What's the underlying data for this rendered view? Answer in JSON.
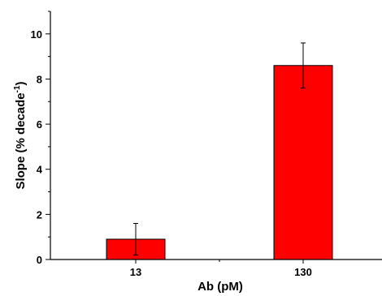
{
  "chart_data": {
    "type": "bar",
    "categories": [
      "13",
      "130"
    ],
    "values": [
      0.9,
      8.6
    ],
    "errors": [
      0.7,
      1.0
    ],
    "bar_color": "#ff0000",
    "xlabel": "Ab (pM)",
    "ylabel_main": "Slope (% decade",
    "ylabel_sup": "-1",
    "ylabel_close": ")",
    "ylim": [
      0,
      11
    ],
    "yticks": [
      "0",
      "2",
      "4",
      "6",
      "8",
      "10"
    ],
    "grid": false
  }
}
